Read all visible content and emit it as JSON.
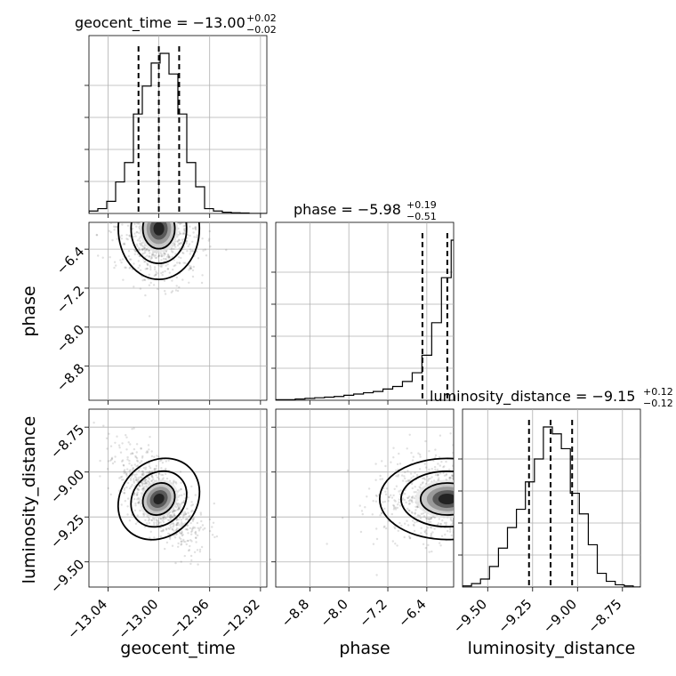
{
  "chart_data": {
    "type": "corner",
    "parameters": [
      "geocent_time",
      "phase",
      "luminosity_distance"
    ],
    "axis_labels": {
      "geocent_time": "geocent_time",
      "phase": "phase",
      "luminosity_distance": "luminosity_distance"
    },
    "ranges": {
      "geocent_time": [
        -13.055,
        -12.915
      ],
      "phase": [
        -9.5,
        -5.85
      ],
      "luminosity_distance": [
        -9.64,
        -8.65
      ]
    },
    "ticks": {
      "geocent_time": {
        "values": [
          -13.04,
          -13.0,
          -12.96,
          -12.92
        ],
        "labels": [
          "−13.04",
          "−13.00",
          "−12.96",
          "−12.92"
        ]
      },
      "phase": {
        "values": [
          -8.8,
          -8.0,
          -7.2,
          -6.4
        ],
        "labels": [
          "−8.8",
          "−8.0",
          "−7.2",
          "−6.4"
        ]
      },
      "luminosity_distance": {
        "values": [
          -9.5,
          -9.25,
          -9.0,
          -8.75
        ],
        "labels": [
          "−9.50",
          "−9.25",
          "−9.00",
          "−8.75"
        ]
      }
    },
    "titles": {
      "geocent_time": {
        "main": "geocent_time = −13.00",
        "plus": "+0.02",
        "minus": "−0.02"
      },
      "phase": {
        "main": "phase = −5.98",
        "plus": "+0.19",
        "minus": "−0.51"
      },
      "luminosity_distance": {
        "main": "luminosity_distance = −9.15",
        "plus": "+0.12",
        "minus": "−0.12"
      }
    },
    "quantiles": {
      "geocent_time": [
        -13.016,
        -13.0,
        -12.984
      ],
      "phase": [
        -6.49,
        -5.98,
        -5.79
      ],
      "luminosity_distance": [
        -9.27,
        -9.15,
        -9.03
      ]
    },
    "histograms": {
      "geocent_time": {
        "edges": [
          -13.055,
          -13.048,
          -13.041,
          -13.034,
          -13.027,
          -13.02,
          -13.013,
          -13.006,
          -12.999,
          -12.992,
          -12.985,
          -12.978,
          -12.971,
          -12.964,
          -12.957,
          -12.95,
          -12.943,
          -12.936,
          -12.929,
          -12.922,
          -12.915
        ],
        "counts": [
          2,
          4,
          10,
          26,
          42,
          82,
          105,
          124,
          132,
          115,
          82,
          42,
          22,
          4,
          2,
          1,
          0.6,
          0.4,
          0,
          0
        ]
      },
      "phase": {
        "edges": [
          -9.5,
          -9.3,
          -9.1,
          -8.9,
          -8.7,
          -8.5,
          -8.3,
          -8.1,
          -7.9,
          -7.7,
          -7.5,
          -7.3,
          -7.1,
          -6.9,
          -6.7,
          -6.5,
          -6.3,
          -6.1,
          -5.9,
          -5.85
        ],
        "counts": [
          0.5,
          0.5,
          1,
          1.5,
          2,
          2.5,
          3,
          4,
          5,
          6,
          7,
          9,
          11,
          15,
          22,
          36,
          62,
          98,
          128
        ]
      },
      "luminosity_distance": {
        "edges": [
          -9.64,
          -9.59,
          -9.54,
          -9.49,
          -9.44,
          -9.39,
          -9.34,
          -9.29,
          -9.24,
          -9.19,
          -9.14,
          -9.09,
          -9.04,
          -8.99,
          -8.94,
          -8.89,
          -8.84,
          -8.79,
          -8.74,
          -8.69,
          -8.65
        ],
        "counts": [
          1,
          3,
          7,
          18,
          34,
          52,
          68,
          92,
          112,
          140,
          134,
          121,
          82,
          64,
          37,
          12,
          5,
          2,
          1,
          0
        ]
      }
    },
    "density_hotspots": [
      {
        "x": "geocent_time",
        "y": "phase",
        "cx": -13.0,
        "cy": -5.98
      },
      {
        "x": "geocent_time",
        "y": "luminosity_distance",
        "cx": -13.0,
        "cy": -9.15
      },
      {
        "x": "phase",
        "y": "luminosity_distance",
        "cx": -5.98,
        "cy": -9.15
      }
    ],
    "grid": true
  }
}
